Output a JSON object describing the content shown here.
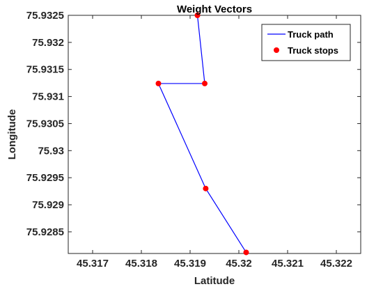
{
  "chart_data": {
    "type": "line",
    "title": "Weight Vectors",
    "xlabel": "Latitude",
    "ylabel": "Longitude",
    "xlim": [
      45.3165,
      45.3225
    ],
    "ylim": [
      75.9281,
      75.9325
    ],
    "xticks": [
      "45.317",
      "45.318",
      "45.319",
      "45.32",
      "45.321",
      "45.322"
    ],
    "xtick_values": [
      45.317,
      45.318,
      45.319,
      45.32,
      45.321,
      45.322
    ],
    "yticks": [
      "75.9285",
      "75.929",
      "75.9295",
      "75.93",
      "75.9305",
      "75.931",
      "75.9315",
      "75.932",
      "75.9325"
    ],
    "ytick_values": [
      75.9285,
      75.929,
      75.9295,
      75.93,
      75.9305,
      75.931,
      75.9315,
      75.932,
      75.9325
    ],
    "grid": false,
    "legend_position": "top-right",
    "series": [
      {
        "name": "Truck path",
        "style": "line",
        "color": "#0000ff",
        "x": [
          45.31915,
          45.3193,
          45.31835,
          45.31932,
          45.32015
        ],
        "y": [
          75.9325,
          75.93124,
          75.93124,
          75.9293,
          75.92812
        ]
      },
      {
        "name": "Truck stops",
        "style": "markers",
        "color": "#ff0000",
        "x": [
          45.31915,
          45.3193,
          45.31835,
          45.31932,
          45.32015
        ],
        "y": [
          75.9325,
          75.93124,
          75.93124,
          75.9293,
          75.92812
        ]
      }
    ]
  }
}
